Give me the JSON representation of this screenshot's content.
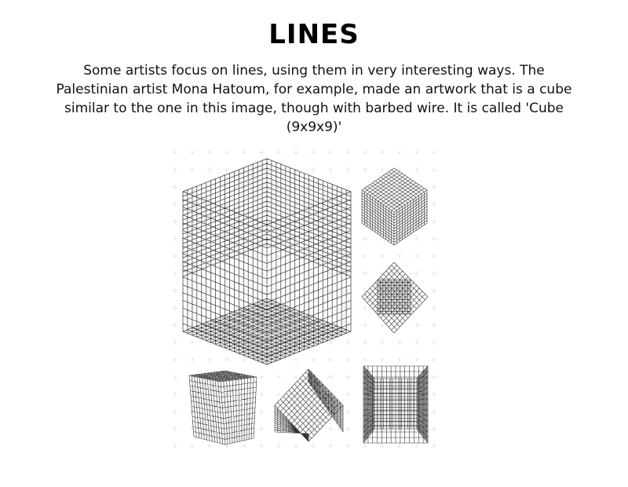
{
  "page": {
    "title": "LINES",
    "paragraph": "Some artists focus on lines, using them in very interesting ways.  The Palestinian artist Mona Hatoum, for example, made an artwork that is a cube similar to the one in this image, though with barbed wire.  It is called 'Cube (9x9x9)'"
  },
  "figure": {
    "subject": "wire-grid-cubes",
    "views": [
      "front-large",
      "corner-top",
      "corner-front",
      "side-left",
      "corner-bottom",
      "interior-perspective"
    ],
    "line_color": "#333333",
    "background_pattern_color": "#e6e6e6"
  }
}
